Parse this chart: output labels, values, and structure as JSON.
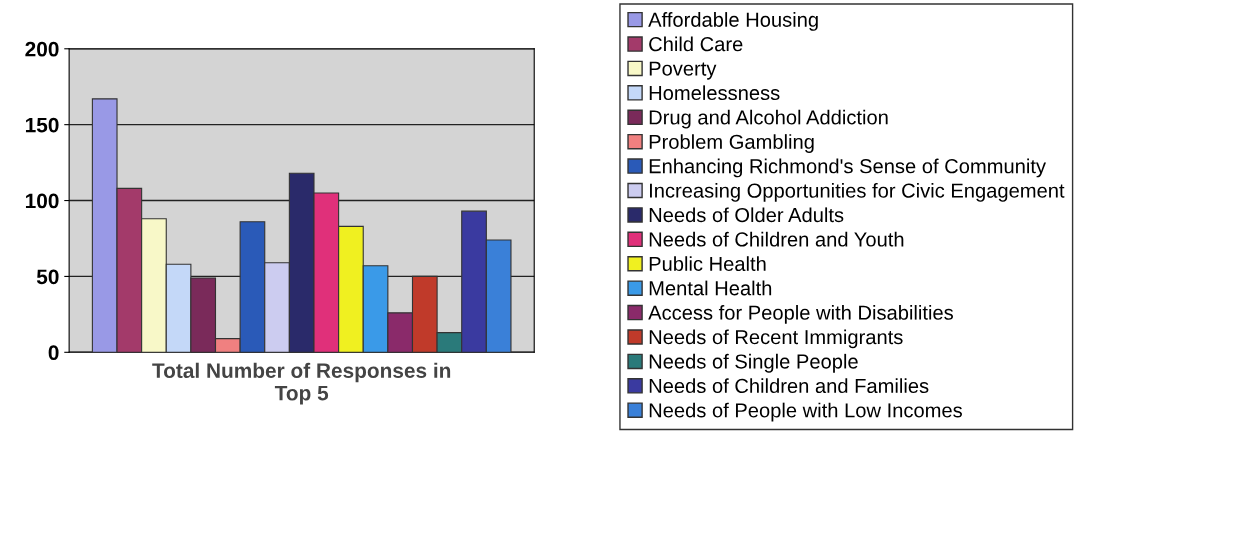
{
  "chart_data": {
    "type": "bar",
    "xlabel": "Total Number of Responses in Top 5",
    "categories": [
      null
    ],
    "ylim": [
      0,
      200
    ],
    "yticks": [
      0,
      50,
      100,
      150,
      200
    ],
    "grid": "y",
    "legend": "right",
    "series": [
      {
        "name": "Affordable Housing",
        "color": "#9999e6",
        "values": [
          167
        ]
      },
      {
        "name": "Child Care",
        "color": "#a33a6a",
        "values": [
          108
        ]
      },
      {
        "name": "Poverty",
        "color": "#f8f8c8",
        "values": [
          88
        ]
      },
      {
        "name": "Homelessness",
        "color": "#c4d8f8",
        "values": [
          58
        ]
      },
      {
        "name": "Drug and Alcohol Addiction",
        "color": "#7a2a5a",
        "values": [
          49
        ]
      },
      {
        "name": "Problem Gambling",
        "color": "#f08080",
        "values": [
          9
        ]
      },
      {
        "name": "Enhancing Richmond's Sense of Community",
        "color": "#2a5ab8",
        "values": [
          86
        ]
      },
      {
        "name": "Increasing Opportunities for Civic Engagement",
        "color": "#ccccf0",
        "values": [
          59
        ]
      },
      {
        "name": "Needs of Older Adults",
        "color": "#2a2a6a",
        "values": [
          118
        ]
      },
      {
        "name": "Needs of Children and Youth",
        "color": "#e0307a",
        "values": [
          105
        ]
      },
      {
        "name": "Public Health",
        "color": "#f0f020",
        "values": [
          83
        ]
      },
      {
        "name": "Mental Health",
        "color": "#3a9ae8",
        "values": [
          57
        ]
      },
      {
        "name": "Access for People with Disabilities",
        "color": "#8a2a6a",
        "values": [
          26
        ]
      },
      {
        "name": "Needs of Recent Immigrants",
        "color": "#c03a2a",
        "values": [
          50
        ]
      },
      {
        "name": "Needs of Single People",
        "color": "#2a7a7a",
        "values": [
          13
        ]
      },
      {
        "name": "Needs of Children and Families",
        "color": "#3a3aa0",
        "values": [
          93
        ]
      },
      {
        "name": "Needs of People with Low Incomes",
        "color": "#3a80d8",
        "values": [
          74
        ]
      }
    ]
  }
}
